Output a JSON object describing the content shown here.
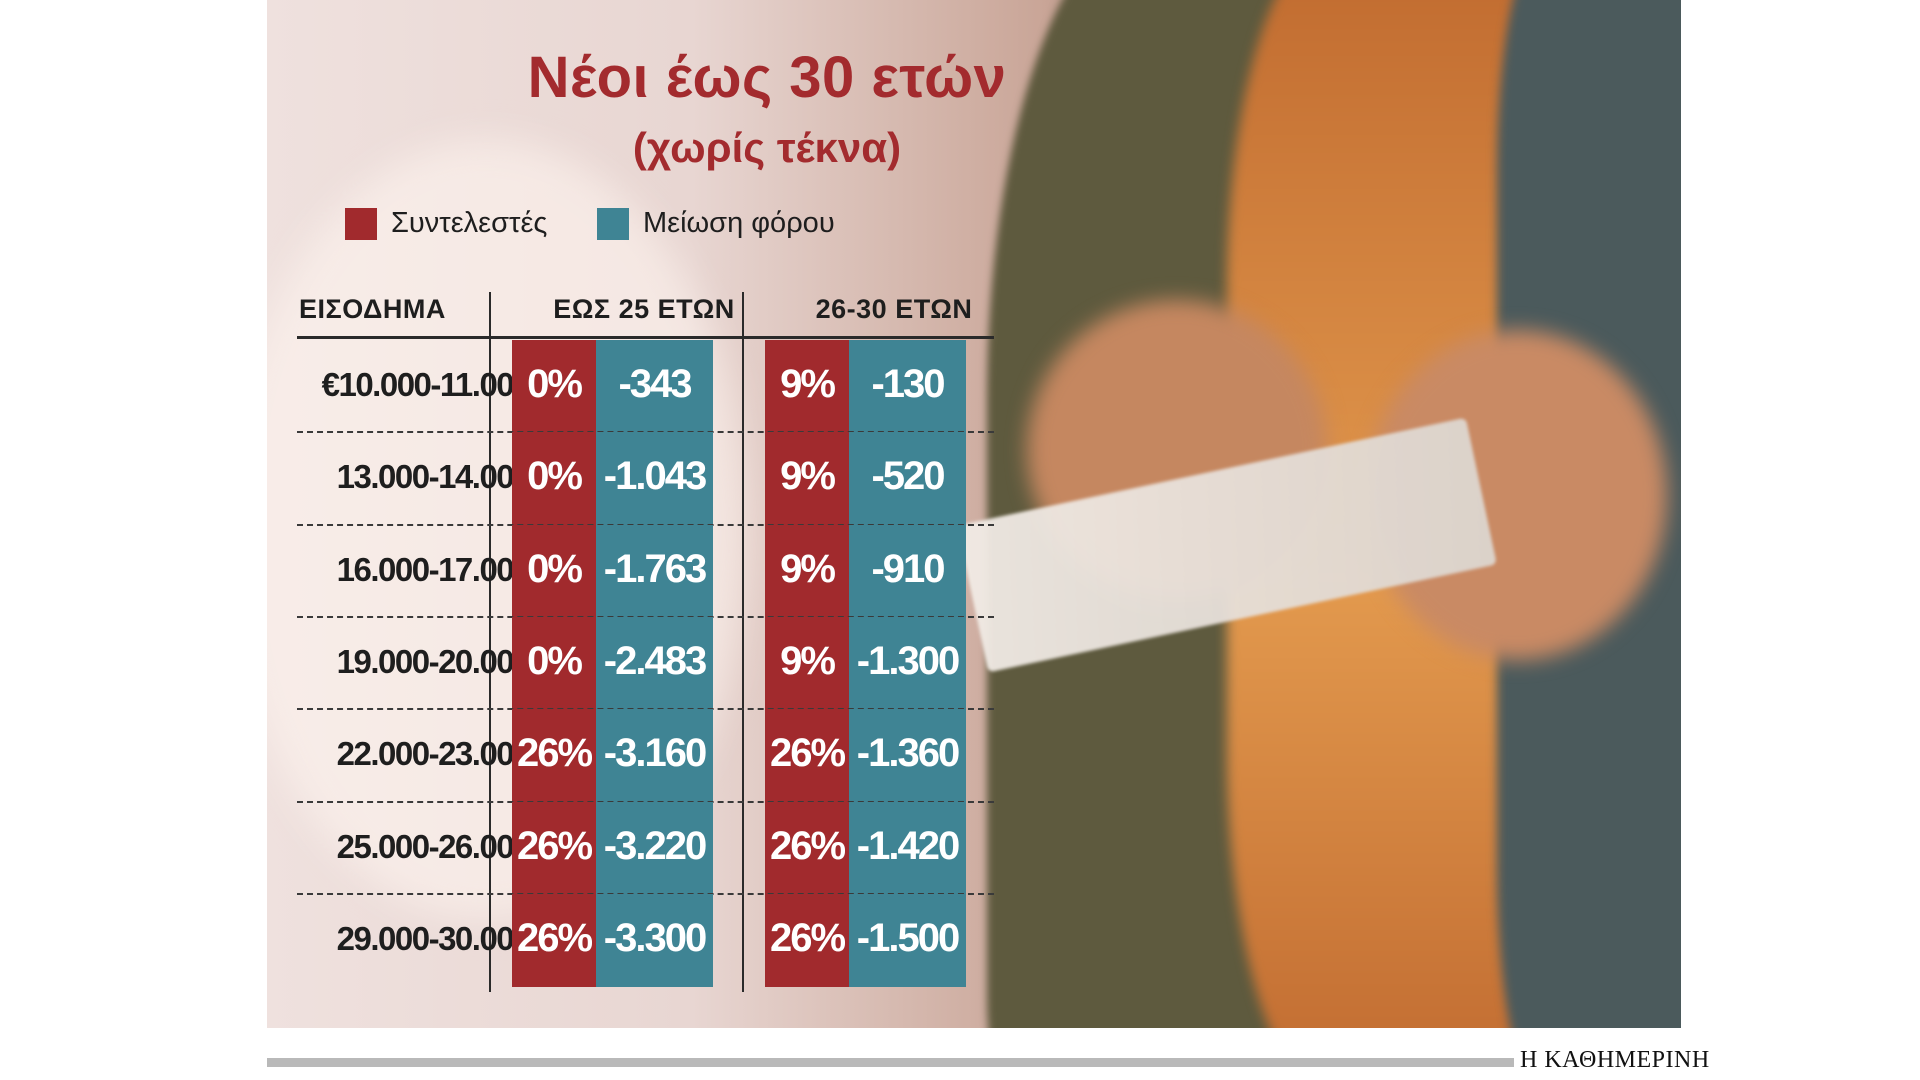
{
  "chart_data": {
    "type": "table",
    "title": "Νέοι έως 30 ετών",
    "subtitle": "(χωρίς τέκνα)",
    "legend": [
      {
        "name": "Συντελεστές",
        "color": "#a12a2d"
      },
      {
        "name": "Μείωση φόρου",
        "color": "#3f8494"
      }
    ],
    "columns": {
      "income": "ΕΙΣΟΔΗΜΑ",
      "group_a": "ΕΩΣ 25 ΕΤΩΝ",
      "group_b": "26-30 ΕΤΩΝ"
    },
    "rows": [
      {
        "income": "€10.000-11.000",
        "a_rate": "0%",
        "a_reduction": "-343",
        "b_rate": "9%",
        "b_reduction": "-130"
      },
      {
        "income": "13.000-14.000",
        "a_rate": "0%",
        "a_reduction": "-1.043",
        "b_rate": "9%",
        "b_reduction": "-520"
      },
      {
        "income": "16.000-17.000",
        "a_rate": "0%",
        "a_reduction": "-1.763",
        "b_rate": "9%",
        "b_reduction": "-910"
      },
      {
        "income": "19.000-20.000",
        "a_rate": "0%",
        "a_reduction": "-2.483",
        "b_rate": "9%",
        "b_reduction": "-1.300"
      },
      {
        "income": "22.000-23.000",
        "a_rate": "26%",
        "a_reduction": "-3.160",
        "b_rate": "26%",
        "b_reduction": "-1.360"
      },
      {
        "income": "25.000-26.000",
        "a_rate": "26%",
        "a_reduction": "-3.220",
        "b_rate": "26%",
        "b_reduction": "-1.420"
      },
      {
        "income": "29.000-30.000",
        "a_rate": "26%",
        "a_reduction": "-3.300",
        "b_rate": "26%",
        "b_reduction": "-1.500"
      }
    ]
  },
  "source": "Η ΚΑΘΗΜΕΡΙΝΗ"
}
